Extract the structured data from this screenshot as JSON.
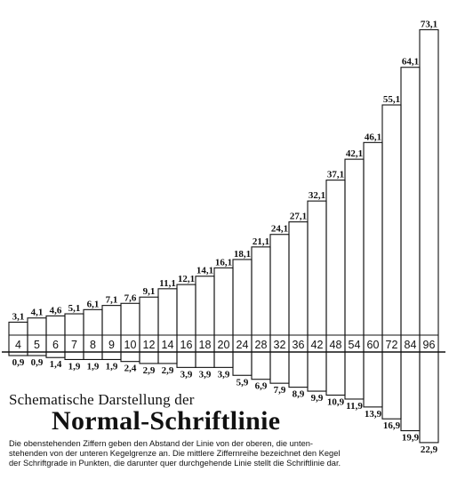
{
  "diagram": {
    "columns": [
      {
        "size": "4",
        "above": "3,1",
        "below": "0,9"
      },
      {
        "size": "5",
        "above": "4,1",
        "below": "0,9"
      },
      {
        "size": "6",
        "above": "4,6",
        "below": "1,4"
      },
      {
        "size": "7",
        "above": "5,1",
        "below": "1,9"
      },
      {
        "size": "8",
        "above": "6,1",
        "below": "1,9"
      },
      {
        "size": "9",
        "above": "7,1",
        "below": "1,9"
      },
      {
        "size": "10",
        "above": "7,6",
        "below": "2,4"
      },
      {
        "size": "12",
        "above": "9,1",
        "below": "2,9"
      },
      {
        "size": "14",
        "above": "11,1",
        "below": "2,9"
      },
      {
        "size": "16",
        "above": "12,1",
        "below": "3,9"
      },
      {
        "size": "18",
        "above": "14,1",
        "below": "3,9"
      },
      {
        "size": "20",
        "above": "16,1",
        "below": "3,9"
      },
      {
        "size": "24",
        "above": "18,1",
        "below": "5,9"
      },
      {
        "size": "28",
        "above": "21,1",
        "below": "6,9"
      },
      {
        "size": "32",
        "above": "24,1",
        "below": "7,9"
      },
      {
        "size": "36",
        "above": "27,1",
        "below": "8,9"
      },
      {
        "size": "42",
        "above": "32,1",
        "below": "9,9"
      },
      {
        "size": "48",
        "above": "37,1",
        "below": "10,9"
      },
      {
        "size": "54",
        "above": "42,1",
        "below": "11,9"
      },
      {
        "size": "60",
        "above": "46,1",
        "below": "13,9"
      },
      {
        "size": "72",
        "above": "55,1",
        "below": "16,9"
      },
      {
        "size": "84",
        "above": "64,1",
        "below": "19,9"
      },
      {
        "size": "96",
        "above": "73,1",
        "below": "22,9"
      }
    ]
  },
  "title_small": "Schematische Darstellung der",
  "title_large": "Normal-Schriftlinie",
  "description_lines": [
    "Die obenstehenden Ziffern geben den Abstand der Linie von der oberen, die unten-",
    "stehenden von der unteren Kegelgrenze an.  Die mittlere Ziffernreihe bezeichnet den Kegel",
    "der Schriftgrade in Punkten, die darunter quer durchgehende Linie stellt die Schriftlinie dar."
  ]
}
